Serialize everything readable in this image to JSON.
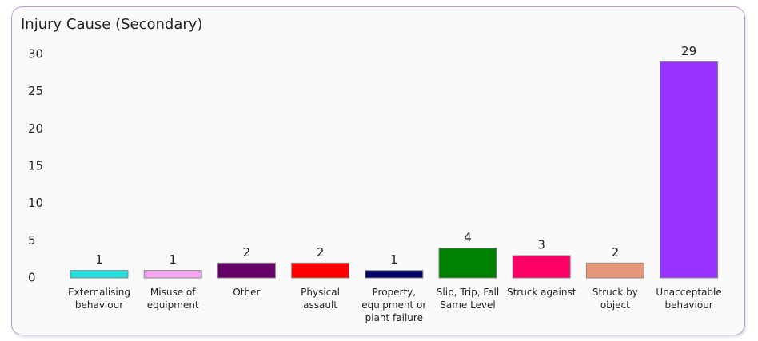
{
  "chart_data": {
    "type": "bar",
    "title": "Injury Cause (Secondary)",
    "categories": [
      "Externalising behaviour",
      "Misuse of equipment",
      "Other",
      "Physical assault",
      "Property, equipment or plant failure",
      "Slip, Trip, Fall Same Level",
      "Struck against",
      "Struck by object",
      "Unacceptable behaviour"
    ],
    "values": [
      1,
      1,
      2,
      2,
      1,
      4,
      3,
      2,
      29
    ],
    "colors": [
      "#22dddd",
      "#f5a6f2",
      "#660066",
      "#ff0000",
      "#000066",
      "#008000",
      "#ff0066",
      "#e8967a",
      "#9933ff"
    ],
    "ylim": [
      0,
      30
    ],
    "yticks": [
      0,
      5,
      10,
      15,
      20,
      25,
      30
    ],
    "grid": false
  }
}
